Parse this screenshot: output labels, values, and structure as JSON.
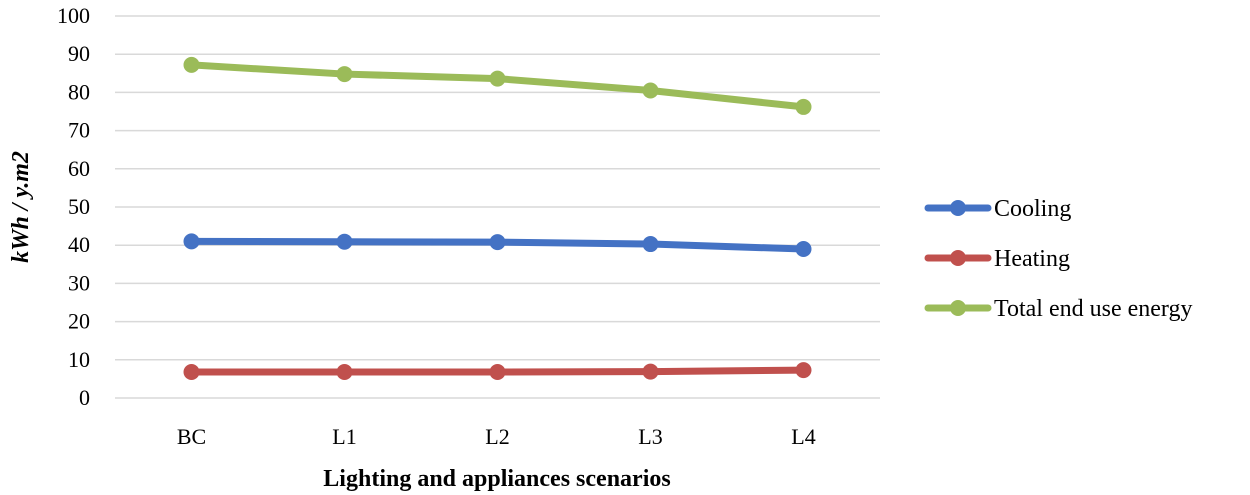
{
  "chart_data": {
    "type": "line",
    "title": "",
    "categories": [
      "BC",
      "L1",
      "L2",
      "L3",
      "L4"
    ],
    "series": [
      {
        "name": "Cooling",
        "color": "#4472C4",
        "values": [
          41.0,
          40.9,
          40.8,
          40.3,
          39.0
        ]
      },
      {
        "name": "Heating",
        "color": "#C0504D",
        "values": [
          6.8,
          6.8,
          6.8,
          6.9,
          7.3
        ]
      },
      {
        "name": "Total end use energy",
        "color": "#9BBB59",
        "values": [
          87.2,
          84.8,
          83.6,
          80.5,
          76.2
        ]
      }
    ],
    "xlabel": "Lighting and appliances scenarios",
    "ylabel": "kWh / y.m2",
    "ylim": [
      0,
      100
    ],
    "yticks": [
      0,
      10,
      20,
      30,
      40,
      50,
      60,
      70,
      80,
      90,
      100
    ],
    "grid": true,
    "legend": "right"
  }
}
